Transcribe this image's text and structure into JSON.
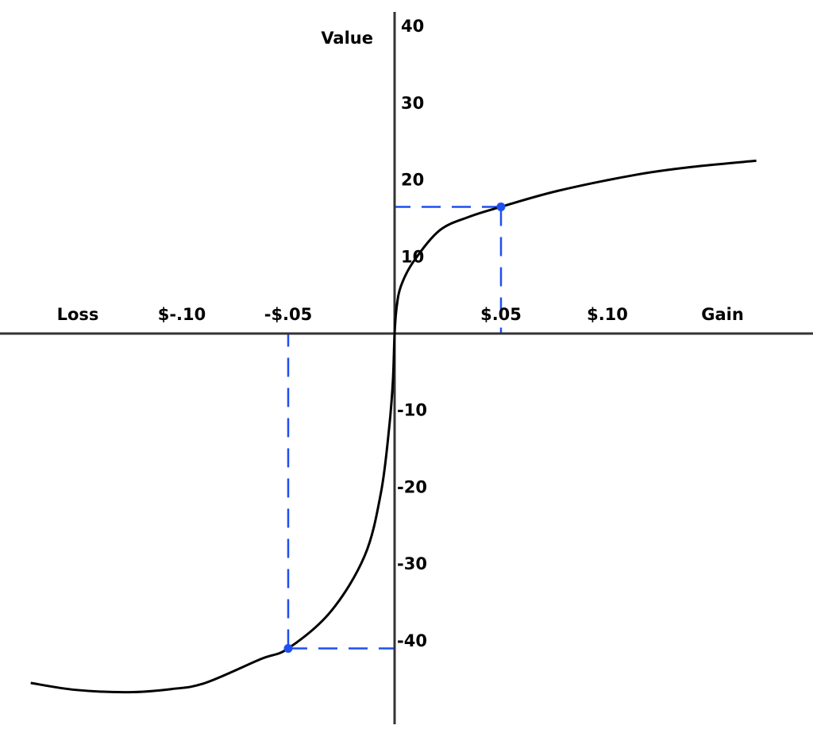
{
  "chart_data": {
    "type": "line",
    "title": "",
    "xlabel_left": "Loss",
    "xlabel_right": "Gain",
    "ylabel": "Value",
    "x_ticks": [
      {
        "value": -0.1,
        "label": "$-.10"
      },
      {
        "value": -0.05,
        "label": "-$.05"
      },
      {
        "value": 0.05,
        "label": "$.05"
      },
      {
        "value": 0.1,
        "label": "$.10"
      }
    ],
    "y_ticks": [
      {
        "value": 40,
        "label": "40"
      },
      {
        "value": 30,
        "label": "30"
      },
      {
        "value": 20,
        "label": "20"
      },
      {
        "value": 10,
        "label": "10"
      },
      {
        "value": -10,
        "label": "-10"
      },
      {
        "value": -20,
        "label": "-20"
      },
      {
        "value": -30,
        "label": "-30"
      },
      {
        "value": -40,
        "label": "-40"
      }
    ],
    "xlim": [
      -0.18,
      0.195
    ],
    "ylim": [
      -51,
      42
    ],
    "grid": false,
    "series": [
      {
        "color": "#000000",
        "x": [
          -0.171,
          -0.15,
          -0.125,
          -0.105,
          -0.089,
          -0.063,
          -0.05,
          -0.03,
          -0.014,
          -0.0064,
          -0.0026,
          -0.0008,
          0,
          0.001,
          0.003,
          0.0087,
          0.021,
          0.035,
          0.05,
          0.077,
          0.114,
          0.14,
          0.17
        ],
        "y": [
          -45.5,
          -46.4,
          -46.7,
          -46.3,
          -45.5,
          -42.4,
          -41,
          -36.2,
          -28.9,
          -20.7,
          -12.4,
          -6.2,
          0,
          3.5,
          6.2,
          9.3,
          13.4,
          15.2,
          16.5,
          18.6,
          20.7,
          21.7,
          22.5
        ]
      }
    ],
    "highlight_points": [
      {
        "x": 0.05,
        "y": 16.5,
        "color": "#1f4ff0"
      },
      {
        "x": -0.05,
        "y": -41,
        "color": "#1f4ff0"
      }
    ]
  }
}
